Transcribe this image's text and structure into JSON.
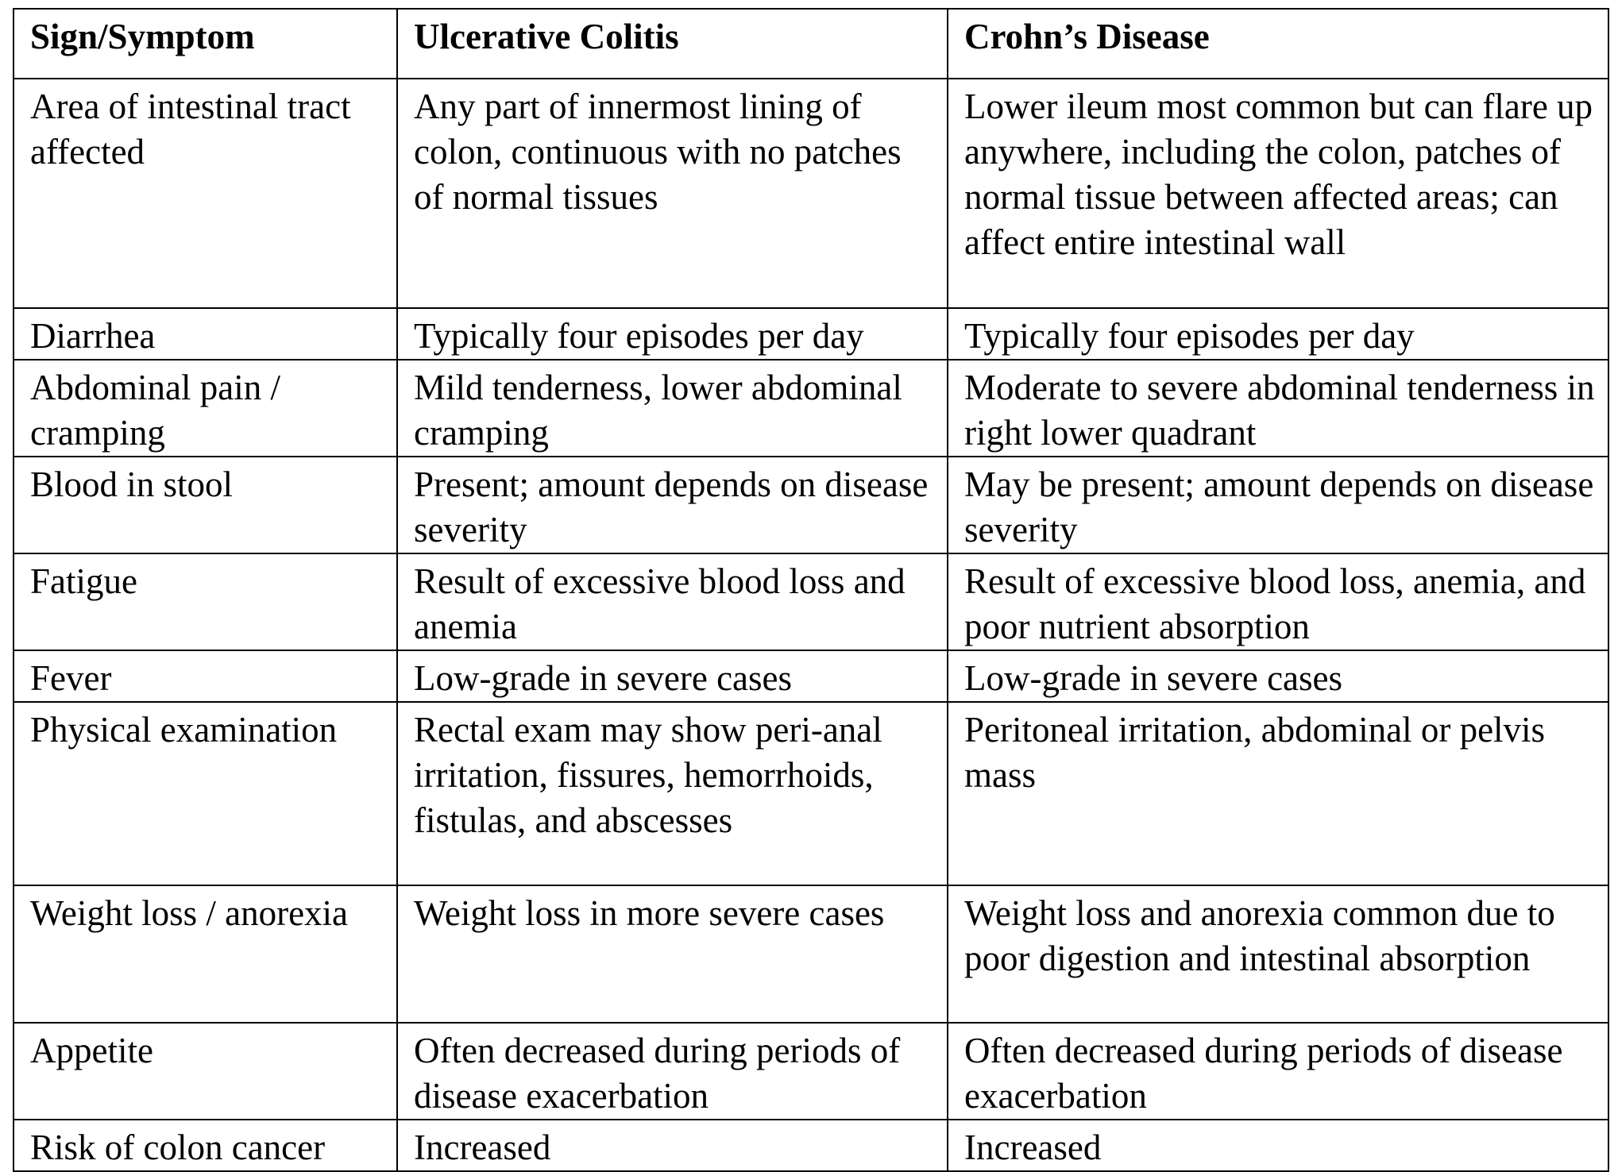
{
  "table": {
    "header": [
      "Sign/Symptom",
      "Ulcerative Colitis",
      "Crohn’s Disease"
    ],
    "rows": [
      [
        "Area of intestinal tract affected",
        "Any part of innermost lining of colon, continuous with no patches of normal tissues",
        "Lower ileum most common but can flare up anywhere, including the colon, patches of normal tissue between affected areas; can affect entire intestinal wall"
      ],
      [
        "Diarrhea",
        "Typically four episodes per day",
        "Typically four episodes per day"
      ],
      [
        "Abdominal pain / cramping",
        "Mild tenderness, lower abdominal cramping",
        "Moderate to severe abdominal tenderness in right lower quadrant"
      ],
      [
        "Blood in stool",
        "Present; amount depends on disease severity",
        "May be present; amount depends on disease severity"
      ],
      [
        "Fatigue",
        "Result of excessive blood loss and anemia",
        "Result of excessive blood loss, anemia, and poor nutrient absorption"
      ],
      [
        "Fever",
        "Low-grade in severe cases",
        "Low-grade in severe cases"
      ],
      [
        "Physical examination",
        "Rectal exam may show peri-anal irritation, fissures, hemorrhoids, fistulas, and abscesses",
        "Peritoneal irritation, abdominal or pelvis mass"
      ],
      [
        "Weight loss / anorexia",
        "Weight loss in more severe cases",
        "Weight loss and anorexia common due to poor digestion and intestinal absorption"
      ],
      [
        "Appetite",
        "Often decreased during periods of disease exacerbation",
        "Often decreased during periods of disease exacerbation"
      ],
      [
        "Risk of colon cancer",
        "Increased",
        "Increased"
      ]
    ]
  }
}
